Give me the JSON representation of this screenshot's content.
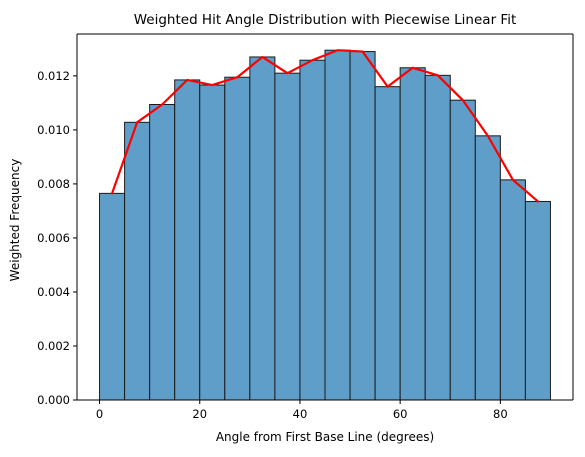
{
  "chart_data": {
    "type": "bar",
    "title": "Weighted Hit Angle Distribution with Piecewise Linear Fit",
    "xlabel": "Angle from First Base Line (degrees)",
    "ylabel": "Weighted Frequency",
    "xlim": [
      -4.5,
      94.5
    ],
    "ylim": [
      0,
      0.01355
    ],
    "x_ticks": [
      0,
      20,
      40,
      60,
      80
    ],
    "x_tick_labels": [
      "0",
      "20",
      "40",
      "60",
      "80"
    ],
    "y_ticks": [
      0,
      0.002,
      0.004,
      0.006,
      0.008,
      0.01,
      0.012
    ],
    "y_tick_labels": [
      "0.000",
      "0.002",
      "0.004",
      "0.006",
      "0.008",
      "0.010",
      "0.012"
    ],
    "grid": false,
    "legend": false,
    "series": [
      {
        "type": "histogram",
        "bin_edges": [
          0,
          5,
          10,
          15,
          20,
          25,
          30,
          35,
          40,
          45,
          50,
          55,
          60,
          65,
          70,
          75,
          80,
          85,
          90
        ],
        "values": [
          0.00765,
          0.01028,
          0.01094,
          0.01185,
          0.01166,
          0.01195,
          0.0127,
          0.0121,
          0.01258,
          0.01295,
          0.0129,
          0.0116,
          0.0123,
          0.01202,
          0.0111,
          0.00978,
          0.00815,
          0.00735
        ],
        "color": "#5f9ec9",
        "edge_color": "#1a1a1a"
      },
      {
        "type": "line",
        "x": [
          2.5,
          7.5,
          12.5,
          17.5,
          22.5,
          27.5,
          32.5,
          37.5,
          42.5,
          47.5,
          52.5,
          57.5,
          62.5,
          67.5,
          72.5,
          77.5,
          82.5,
          87.5
        ],
        "values": [
          0.00765,
          0.01028,
          0.01094,
          0.01185,
          0.01166,
          0.01195,
          0.0127,
          0.0121,
          0.01258,
          0.01295,
          0.0129,
          0.0116,
          0.0123,
          0.01202,
          0.0111,
          0.00978,
          0.00815,
          0.00735
        ],
        "color": "#ff0000"
      }
    ]
  }
}
